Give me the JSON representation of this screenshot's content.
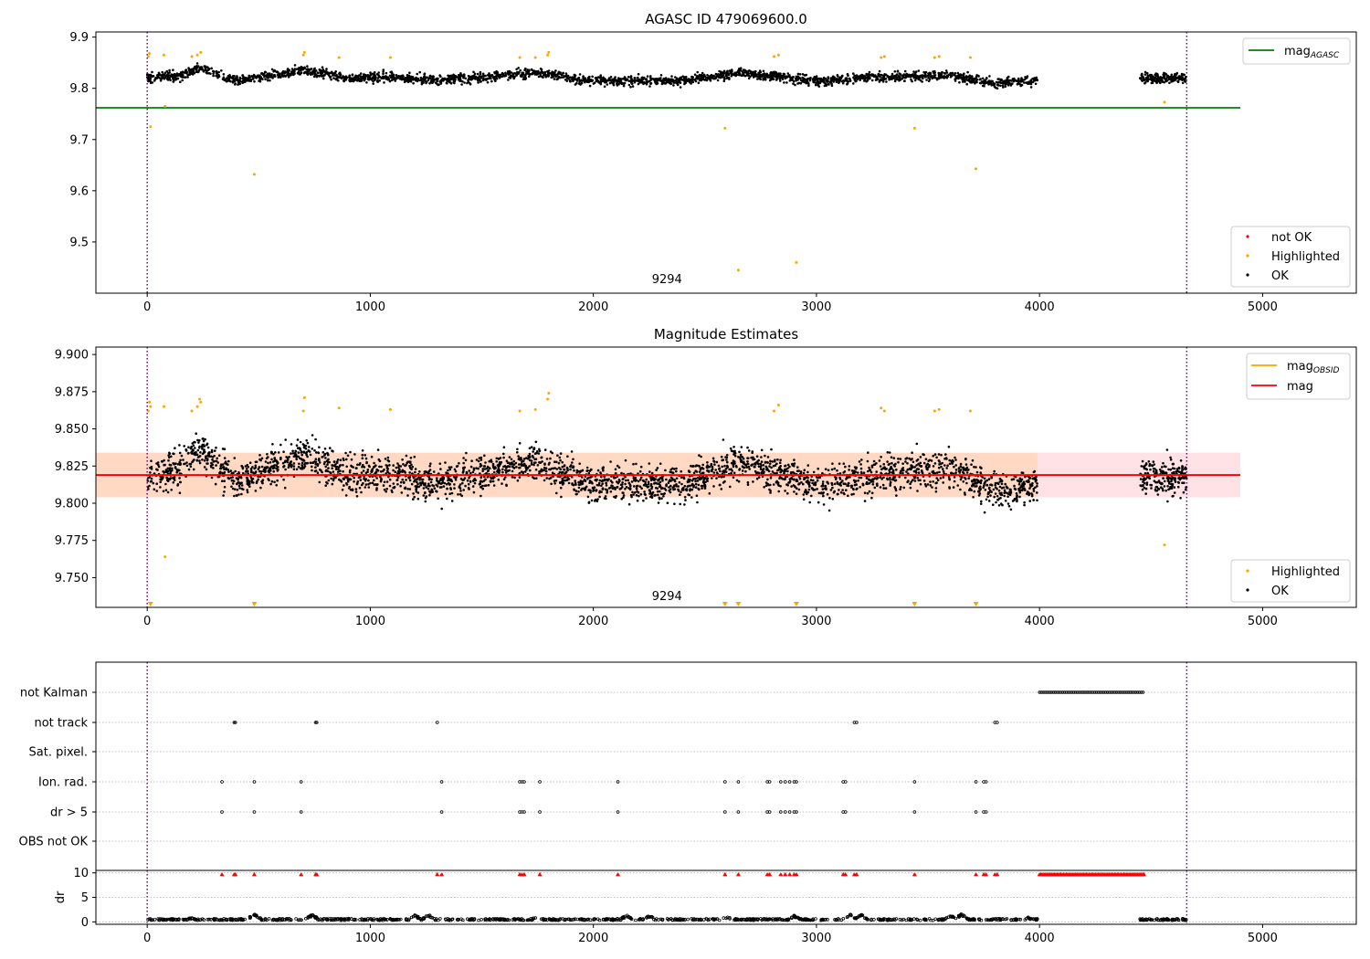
{
  "chart_data": [
    {
      "id": "agasc",
      "type": "scatter",
      "title": "AGASC ID 479069600.0",
      "xlim": [
        -230,
        5420
      ],
      "ylim": [
        9.4,
        9.91
      ],
      "xticks": [
        0,
        1000,
        2000,
        3000,
        4000,
        5000
      ],
      "yticks": [
        9.5,
        9.6,
        9.7,
        9.8,
        9.9
      ],
      "xtick_labels": [
        "0",
        "1000",
        "2000",
        "3000",
        "4000",
        "5000"
      ],
      "ytick_labels": [
        "9.5",
        "9.6",
        "9.7",
        "9.8",
        "9.9"
      ],
      "vlines": [
        0,
        4660
      ],
      "hline": {
        "y": 9.762,
        "x": [
          -230,
          4900
        ],
        "color": "#008000"
      },
      "legend_lines": [
        {
          "label": "mag",
          "sub": "AGASC",
          "color": "#008000"
        }
      ],
      "legend_points": [
        {
          "label": "not OK",
          "color": "#ff0000"
        },
        {
          "label": "Highlighted",
          "color": "#ffa500"
        },
        {
          "label": "OK",
          "color": "#000000"
        }
      ],
      "annotation": {
        "text": "9294",
        "x": 2330,
        "y": 9.42
      },
      "ok_segments": [
        {
          "x": [
            0,
            3990
          ],
          "y": [
            9.8,
            9.85
          ]
        },
        {
          "x": [
            4450,
            4660
          ],
          "y": [
            9.79,
            9.85
          ]
        }
      ],
      "levels": [
        {
          "x": 0,
          "y": 9.82
        },
        {
          "x": 150,
          "y": 9.825
        },
        {
          "x": 240,
          "y": 9.84
        },
        {
          "x": 400,
          "y": 9.815
        },
        {
          "x": 700,
          "y": 9.835
        },
        {
          "x": 900,
          "y": 9.82
        },
        {
          "x": 1100,
          "y": 9.822
        },
        {
          "x": 1300,
          "y": 9.815
        },
        {
          "x": 1600,
          "y": 9.825
        },
        {
          "x": 1750,
          "y": 9.83
        },
        {
          "x": 2000,
          "y": 9.815
        },
        {
          "x": 2400,
          "y": 9.815
        },
        {
          "x": 2650,
          "y": 9.83
        },
        {
          "x": 3000,
          "y": 9.815
        },
        {
          "x": 3300,
          "y": 9.822
        },
        {
          "x": 3600,
          "y": 9.825
        },
        {
          "x": 3800,
          "y": 9.81
        },
        {
          "x": 3990,
          "y": 9.815
        }
      ],
      "highlighted": [
        [
          5,
          9.862
        ],
        [
          10,
          9.868
        ],
        [
          15,
          9.725
        ],
        [
          75,
          9.865
        ],
        [
          80,
          9.765
        ],
        [
          200,
          9.862
        ],
        [
          225,
          9.865
        ],
        [
          240,
          9.87
        ],
        [
          480,
          9.632
        ],
        [
          700,
          9.865
        ],
        [
          705,
          9.87
        ],
        [
          860,
          9.86
        ],
        [
          1090,
          9.86
        ],
        [
          1670,
          9.86
        ],
        [
          1740,
          9.86
        ],
        [
          1795,
          9.865
        ],
        [
          1800,
          9.87
        ],
        [
          2590,
          9.722
        ],
        [
          2650,
          9.445
        ],
        [
          2810,
          9.862
        ],
        [
          2830,
          9.865
        ],
        [
          2910,
          9.46
        ],
        [
          3290,
          9.86
        ],
        [
          3305,
          9.862
        ],
        [
          3440,
          9.722
        ],
        [
          3530,
          9.86
        ],
        [
          3550,
          9.862
        ],
        [
          3690,
          9.86
        ],
        [
          3715,
          9.643
        ],
        [
          4560,
          9.773
        ]
      ]
    },
    {
      "id": "estimates",
      "type": "scatter",
      "title": "Magnitude Estimates",
      "xlim": [
        -230,
        5420
      ],
      "ylim": [
        9.73,
        9.905
      ],
      "xticks": [
        0,
        1000,
        2000,
        3000,
        4000,
        5000
      ],
      "yticks": [
        9.75,
        9.775,
        9.8,
        9.825,
        9.85,
        9.875,
        9.9
      ],
      "xtick_labels": [
        "0",
        "1000",
        "2000",
        "3000",
        "4000",
        "5000"
      ],
      "ytick_labels": [
        "9.750",
        "9.775",
        "9.800",
        "9.825",
        "9.850",
        "9.875",
        "9.900"
      ],
      "vlines": [
        0,
        4660
      ],
      "band_obsid": {
        "x": [
          -230,
          3990
        ],
        "y": [
          9.804,
          9.834
        ],
        "color": "#ffa500"
      },
      "band_mag": {
        "x": [
          -230,
          4900
        ],
        "y": [
          9.804,
          9.834
        ],
        "color": "#ffb6c1"
      },
      "mag_line": {
        "y": 9.819,
        "x": [
          -230,
          4900
        ],
        "color": "#ff0000"
      },
      "legend_lines": [
        {
          "label": "mag",
          "sub": "OBSID",
          "color": "#ffa500"
        },
        {
          "label": "mag",
          "sub": "",
          "color": "#ff0000"
        }
      ],
      "legend_points": [
        {
          "label": "Highlighted",
          "color": "#ffa500"
        },
        {
          "label": "OK",
          "color": "#000000"
        }
      ],
      "annotation": {
        "text": "9294",
        "x": 2330,
        "y": 9.735
      },
      "ok_segments": [
        {
          "x": [
            0,
            3990
          ],
          "y": [
            9.78,
            9.86
          ]
        },
        {
          "x": [
            4450,
            4660
          ],
          "y": [
            9.775,
            9.855
          ]
        }
      ],
      "highlighted": [
        [
          5,
          9.862
        ],
        [
          10,
          9.868
        ],
        [
          15,
          9.865
        ],
        [
          75,
          9.865
        ],
        [
          80,
          9.764
        ],
        [
          200,
          9.862
        ],
        [
          225,
          9.865
        ],
        [
          235,
          9.87
        ],
        [
          240,
          9.868
        ],
        [
          700,
          9.862
        ],
        [
          705,
          9.871
        ],
        [
          860,
          9.864
        ],
        [
          1090,
          9.863
        ],
        [
          1670,
          9.862
        ],
        [
          1740,
          9.863
        ],
        [
          1795,
          9.87
        ],
        [
          1800,
          9.874
        ],
        [
          2810,
          9.862
        ],
        [
          2830,
          9.866
        ],
        [
          3290,
          9.864
        ],
        [
          3305,
          9.862
        ],
        [
          3530,
          9.862
        ],
        [
          3550,
          9.863
        ],
        [
          3690,
          9.862
        ],
        [
          4560,
          9.772
        ]
      ],
      "below_range_markers": [
        15,
        480,
        2590,
        2650,
        2910,
        3440,
        3715
      ]
    },
    {
      "id": "flags",
      "type": "scatter",
      "xlim": [
        -230,
        5420
      ],
      "xticks": [
        0,
        1000,
        2000,
        3000,
        4000,
        5000
      ],
      "xtick_labels": [
        "0",
        "1000",
        "2000",
        "3000",
        "4000",
        "5000"
      ],
      "vlines": [
        0,
        4660
      ],
      "rows": [
        {
          "label": "not Kalman",
          "points": [],
          "ranges": [
            [
              4000,
              4470
            ]
          ]
        },
        {
          "label": "not track",
          "points": [
            390,
            395,
            755,
            760,
            1300,
            3170,
            3180,
            3800,
            3810
          ],
          "ranges": []
        },
        {
          "label": "Sat. pixel.",
          "points": [],
          "ranges": []
        },
        {
          "label": "Ion. rad.",
          "points": [
            335,
            480,
            690,
            1320,
            1670,
            1680,
            1690,
            1760,
            2110,
            2590,
            2650,
            2780,
            2790,
            2840,
            2860,
            2880,
            2900,
            2910,
            3120,
            3130,
            3440,
            3715,
            3750,
            3760
          ],
          "ranges": []
        },
        {
          "label": "dr > 5",
          "points": [
            335,
            480,
            690,
            1320,
            1670,
            1680,
            1690,
            1760,
            2110,
            2590,
            2650,
            2780,
            2790,
            2840,
            2860,
            2880,
            2900,
            2910,
            3120,
            3130,
            3440,
            3715,
            3750,
            3760
          ],
          "ranges": []
        },
        {
          "label": "OBS not OK",
          "points": [],
          "ranges": []
        }
      ],
      "dr_panel": {
        "ylabel": "dr",
        "ylim": [
          -0.5,
          10.5
        ],
        "yticks": [
          0,
          5,
          10
        ],
        "ytick_labels": [
          "0",
          "5",
          "10"
        ],
        "flag_y": 9.8,
        "flag_points": [
          335,
          390,
          395,
          480,
          690,
          755,
          760,
          1300,
          1320,
          1670,
          1680,
          1690,
          1760,
          2110,
          2590,
          2650,
          2780,
          2790,
          2840,
          2860,
          2880,
          2900,
          2910,
          3120,
          3130,
          3170,
          3180,
          3440,
          3715,
          3750,
          3760,
          3800,
          3810
        ],
        "flag_range": [
          4000,
          4470
        ],
        "bumps": [
          [
            0,
            0.4
          ],
          [
            200,
            0.6
          ],
          [
            480,
            1.4
          ],
          [
            740,
            1.2
          ],
          [
            900,
            0.4
          ],
          [
            1200,
            1.1
          ],
          [
            1260,
            1.2
          ],
          [
            1500,
            0.4
          ],
          [
            1750,
            0.9
          ],
          [
            2150,
            1.1
          ],
          [
            2250,
            1.0
          ],
          [
            2600,
            0.8
          ],
          [
            2900,
            1.0
          ],
          [
            3150,
            1.3
          ],
          [
            3200,
            1.2
          ],
          [
            3600,
            1.1
          ],
          [
            3650,
            1.3
          ],
          [
            3950,
            0.6
          ]
        ],
        "segments": [
          [
            0,
            3990
          ],
          [
            4450,
            4660
          ]
        ]
      }
    }
  ]
}
